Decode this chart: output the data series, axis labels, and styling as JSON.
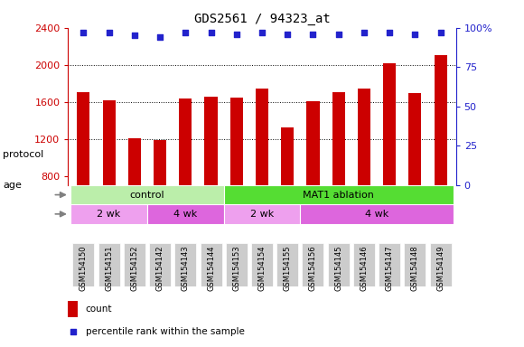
{
  "title": "GDS2561 / 94323_at",
  "samples": [
    "GSM154150",
    "GSM154151",
    "GSM154152",
    "GSM154142",
    "GSM154143",
    "GSM154144",
    "GSM154153",
    "GSM154154",
    "GSM154155",
    "GSM154156",
    "GSM154145",
    "GSM154146",
    "GSM154147",
    "GSM154148",
    "GSM154149"
  ],
  "counts": [
    1700,
    1620,
    1205,
    1185,
    1640,
    1660,
    1650,
    1740,
    1320,
    1610,
    1700,
    1740,
    2020,
    1690,
    2100
  ],
  "percentile_ranks": [
    97,
    97,
    95,
    94,
    97,
    97,
    96,
    97,
    96,
    96,
    96,
    97,
    97,
    96,
    97
  ],
  "bar_color": "#cc0000",
  "dot_color": "#2222cc",
  "ylim_left": [
    700,
    2400
  ],
  "ylim_right": [
    0,
    100
  ],
  "yticks_left": [
    800,
    1200,
    1600,
    2000,
    2400
  ],
  "yticks_right": [
    0,
    25,
    50,
    75,
    100
  ],
  "protocol_groups": [
    {
      "label": "control",
      "start": 0,
      "end": 6,
      "color": "#bbeeaa"
    },
    {
      "label": "MAT1 ablation",
      "start": 6,
      "end": 15,
      "color": "#55dd33"
    }
  ],
  "age_groups": [
    {
      "label": "2 wk",
      "start": 0,
      "end": 3,
      "color": "#eea0ee"
    },
    {
      "label": "4 wk",
      "start": 3,
      "end": 6,
      "color": "#dd66dd"
    },
    {
      "label": "2 wk",
      "start": 6,
      "end": 9,
      "color": "#eea0ee"
    },
    {
      "label": "4 wk",
      "start": 9,
      "end": 15,
      "color": "#dd66dd"
    }
  ],
  "xticklabel_bg": "#cccccc",
  "ylabel_left_color": "#cc0000",
  "ylabel_right_color": "#2222cc",
  "protocol_label_color": "#888888",
  "age_label_color": "#888888"
}
